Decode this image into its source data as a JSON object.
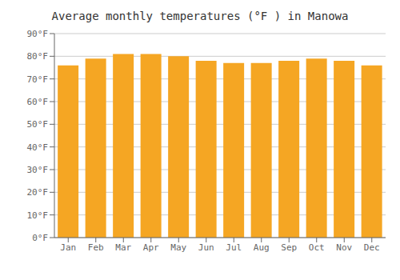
{
  "chart_data": {
    "type": "bar",
    "title": "Average monthly temperatures (°F ) in Manowa",
    "categories": [
      "Jan",
      "Feb",
      "Mar",
      "Apr",
      "May",
      "Jun",
      "Jul",
      "Aug",
      "Sep",
      "Oct",
      "Nov",
      "Dec"
    ],
    "values": [
      76,
      79,
      81,
      81,
      80,
      78,
      77,
      77,
      78,
      79,
      78,
      76
    ],
    "color": "#F5A623",
    "ylim": [
      0,
      90
    ],
    "yticks": [
      {
        "value": 0,
        "label": "0°F"
      },
      {
        "value": 10,
        "label": "10°F"
      },
      {
        "value": 20,
        "label": "20°F"
      },
      {
        "value": 30,
        "label": "30°F"
      },
      {
        "value": 40,
        "label": "40°F"
      },
      {
        "value": 50,
        "label": "50°F"
      },
      {
        "value": 60,
        "label": "60°F"
      },
      {
        "value": 70,
        "label": "70°F"
      },
      {
        "value": 80,
        "label": "80°F"
      },
      {
        "value": 90,
        "label": "90°F"
      }
    ],
    "grid": true
  }
}
